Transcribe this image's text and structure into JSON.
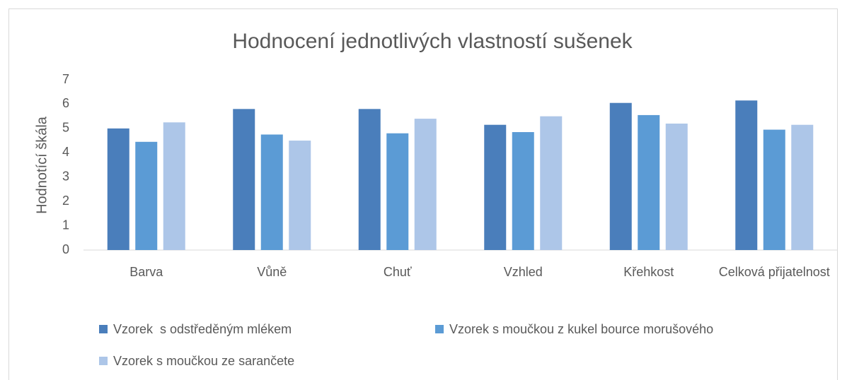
{
  "chart_data": {
    "type": "bar",
    "title": "Hodnocení jednotlivých vlastností sušenek",
    "y_label": "Hodnotící škála",
    "categories": [
      "Barva",
      "Vůně",
      "Chuť",
      "Vzhled",
      "Křehkost",
      "Celková přijatelnost"
    ],
    "series": [
      {
        "name": "Vzorek  s odstředěným mlékem",
        "color": "#4a7ebb",
        "values": [
          5.0,
          5.8,
          5.8,
          5.15,
          6.05,
          6.15
        ]
      },
      {
        "name": "Vzorek s moučkou z kukel bource morušového",
        "color": "#5b9bd5",
        "values": [
          4.45,
          4.75,
          4.8,
          4.85,
          5.55,
          4.95
        ]
      },
      {
        "name": "Vzorek s moučkou ze sarančete",
        "color": "#adc6e8",
        "values": [
          5.25,
          4.5,
          5.4,
          5.5,
          5.2,
          5.15
        ]
      }
    ],
    "ylim": [
      0,
      7
    ],
    "yticks": [
      0,
      1,
      2,
      3,
      4,
      5,
      6,
      7
    ],
    "grid": false,
    "legend": "bottom"
  }
}
